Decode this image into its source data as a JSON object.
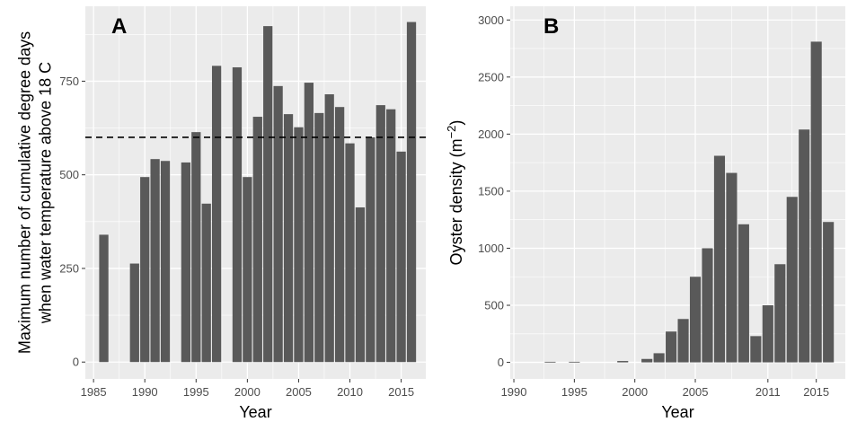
{
  "colors": {
    "panel_bg": "#ebebeb",
    "grid": "#ffffff",
    "bar": "#595959",
    "tick": "#333333",
    "refline": "#000000"
  },
  "chart_data": [
    {
      "type": "bar",
      "panel_label": "A",
      "xlabel": "Year",
      "ylabel_lines": [
        "Maximum number of cumulative degree days",
        "when water temperature above 18 C"
      ],
      "xlim": [
        1984.2,
        2017.4
      ],
      "ylim": [
        -45,
        950
      ],
      "xticks": [
        1985,
        1990,
        1995,
        2000,
        2005,
        2010,
        2015
      ],
      "yticks": [
        0,
        250,
        500,
        750
      ],
      "reference_line": {
        "y": 600,
        "style": "dashed"
      },
      "x": [
        1986,
        1989,
        1990,
        1991,
        1992,
        1994,
        1995,
        1996,
        1997,
        1999,
        2000,
        2001,
        2002,
        2003,
        2004,
        2005,
        2006,
        2007,
        2008,
        2009,
        2010,
        2011,
        2012,
        2013,
        2014,
        2015,
        2016
      ],
      "values": [
        340,
        263,
        494,
        542,
        537,
        533,
        614,
        423,
        791,
        787,
        494,
        655,
        897,
        737,
        662,
        627,
        746,
        665,
        715,
        681,
        584,
        413,
        600,
        686,
        675,
        562,
        908
      ]
    },
    {
      "type": "bar",
      "panel_label": "B",
      "xlabel": "Year",
      "ylabel": "Oyster density",
      "yunit_base": "(m",
      "yunit_exp": "−2",
      "yunit_close": ")",
      "xlim": [
        1989.7,
        2017.4
      ],
      "ylim": [
        -145,
        3120
      ],
      "xticks": [
        1990,
        1995,
        2000,
        2005,
        2011,
        2015
      ],
      "yticks": [
        0,
        500,
        1000,
        1500,
        2000,
        2500,
        3000
      ],
      "x": [
        1993,
        1995,
        1999,
        2001,
        2002,
        2003,
        2004,
        2005,
        2006,
        2007,
        2008,
        2009,
        2010,
        2011,
        2012,
        2013,
        2014,
        2015,
        2016
      ],
      "values": [
        5,
        5,
        12,
        30,
        80,
        270,
        380,
        750,
        1000,
        1810,
        1660,
        1210,
        230,
        500,
        860,
        1450,
        2040,
        2810,
        1230
      ]
    }
  ]
}
